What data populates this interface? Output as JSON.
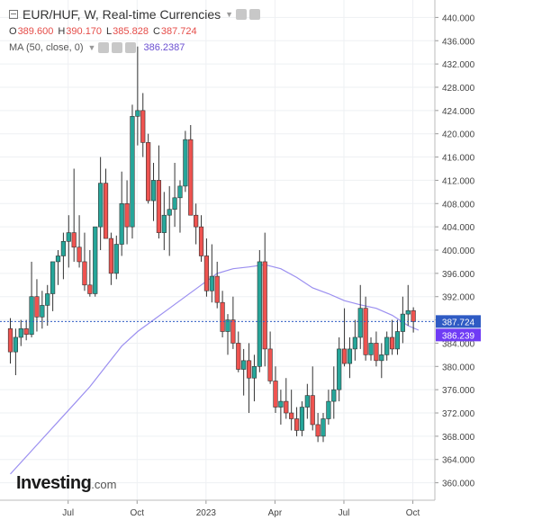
{
  "legend": {
    "title": "EUR/HUF, W, Real-time Currencies",
    "ohlc": [
      {
        "key": "O",
        "value": "389.600"
      },
      {
        "key": "H",
        "value": "390.170"
      },
      {
        "key": "L",
        "value": "385.828"
      },
      {
        "key": "C",
        "value": "387.724"
      }
    ],
    "ma_label": "MA (50, close, 0)",
    "ma_value": "386.2387"
  },
  "brand": {
    "name": "Investing",
    "suffix": ".com"
  },
  "colors": {
    "up": "#26a69a",
    "down": "#ef5350",
    "ma": "#9b8ff0",
    "price_line": "#2f5bc4",
    "price_tag": "#2f5bc4",
    "ma_tag": "#6f3bf5"
  },
  "chart_data": {
    "type": "candlestick",
    "title": "EUR/HUF, W, Real-time Currencies",
    "y_range": [
      357,
      443
    ],
    "y_ticks": [
      "360.000",
      "364.000",
      "368.000",
      "372.000",
      "376.000",
      "380.000",
      "384.000",
      "388.000",
      "392.000",
      "396.000",
      "400.000",
      "404.000",
      "408.000",
      "412.000",
      "416.000",
      "420.000",
      "424.000",
      "428.000",
      "432.000",
      "436.000",
      "440.000"
    ],
    "x_ticks": [
      {
        "label": "Jul",
        "index": 10
      },
      {
        "label": "Oct",
        "index": 23
      },
      {
        "label": "2023",
        "index": 36
      },
      {
        "label": "Apr",
        "index": 49
      },
      {
        "label": "Jul",
        "index": 62
      },
      {
        "label": "Oct",
        "index": 75
      }
    ],
    "last_price_label": "387.724",
    "ma_label": "386.239",
    "candles": [
      [
        386.5,
        388.3,
        380.5,
        382.5
      ],
      [
        382.5,
        386.5,
        378.5,
        385.0
      ],
      [
        385.0,
        388.0,
        383.5,
        386.5
      ],
      [
        386.5,
        388.0,
        384.5,
        385.5
      ],
      [
        385.5,
        398.0,
        385.0,
        392.0
      ],
      [
        392.0,
        395.0,
        386.0,
        388.5
      ],
      [
        388.5,
        393.0,
        386.5,
        390.5
      ],
      [
        390.5,
        394.0,
        387.0,
        392.5
      ],
      [
        392.5,
        397.5,
        389.5,
        398.0
      ],
      [
        398.0,
        400.0,
        394.0,
        399.0
      ],
      [
        399.0,
        403.0,
        395.0,
        401.5
      ],
      [
        401.5,
        406.0,
        397.0,
        403.0
      ],
      [
        403.0,
        414.0,
        398.0,
        400.5
      ],
      [
        400.5,
        406.0,
        397.0,
        398.0
      ],
      [
        398.0,
        403.0,
        393.0,
        394.0
      ],
      [
        394.0,
        400.0,
        392.0,
        392.5
      ],
      [
        392.5,
        404.0,
        392.0,
        404.0
      ],
      [
        404.0,
        416.0,
        400.0,
        411.5
      ],
      [
        411.5,
        414.0,
        402.0,
        402.0
      ],
      [
        402.0,
        403.0,
        394.0,
        396.0
      ],
      [
        396.0,
        402.5,
        395.0,
        401.0
      ],
      [
        401.0,
        413.5,
        399.0,
        408.0
      ],
      [
        408.0,
        412.0,
        401.0,
        404.0
      ],
      [
        404.0,
        425.0,
        402.0,
        423.0
      ],
      [
        423.0,
        435.0,
        418.0,
        424.0
      ],
      [
        424.0,
        427.0,
        416.0,
        418.5
      ],
      [
        418.5,
        420.0,
        408.0,
        408.5
      ],
      [
        408.5,
        415.0,
        405.0,
        412.0
      ],
      [
        412.0,
        418.0,
        402.0,
        403.0
      ],
      [
        403.0,
        410.0,
        400.0,
        406.0
      ],
      [
        406.0,
        411.0,
        399.0,
        407.0
      ],
      [
        407.0,
        415.0,
        404.0,
        409.0
      ],
      [
        409.0,
        412.0,
        403.0,
        411.0
      ],
      [
        411.0,
        420.5,
        410.0,
        419.0
      ],
      [
        419.0,
        421.5,
        406.0,
        406.0
      ],
      [
        406.0,
        408.0,
        401.0,
        404.0
      ],
      [
        404.0,
        406.0,
        398.0,
        399.0
      ],
      [
        399.0,
        402.0,
        392.0,
        393.0
      ],
      [
        393.0,
        401.0,
        391.0,
        395.5
      ],
      [
        395.5,
        398.0,
        390.0,
        391.0
      ],
      [
        391.0,
        393.0,
        385.0,
        386.0
      ],
      [
        386.0,
        389.0,
        382.0,
        388.0
      ],
      [
        388.0,
        392.0,
        383.0,
        384.0
      ],
      [
        384.0,
        386.0,
        379.0,
        379.5
      ],
      [
        379.5,
        383.0,
        375.0,
        381.0
      ],
      [
        381.0,
        384.0,
        372.0,
        378.0
      ],
      [
        378.0,
        382.0,
        374.0,
        380.0
      ],
      [
        380.0,
        400.0,
        379.0,
        398.0
      ],
      [
        398.0,
        403.0,
        380.0,
        383.0
      ],
      [
        383.0,
        386.0,
        377.0,
        377.5
      ],
      [
        377.5,
        380.0,
        372.0,
        373.0
      ],
      [
        373.0,
        376.0,
        370.0,
        374.0
      ],
      [
        374.0,
        378.0,
        371.0,
        372.0
      ],
      [
        372.0,
        376.0,
        369.0,
        371.0
      ],
      [
        371.0,
        373.0,
        368.0,
        369.0
      ],
      [
        369.0,
        374.0,
        368.0,
        373.0
      ],
      [
        373.0,
        377.0,
        371.0,
        375.0
      ],
      [
        375.0,
        380.0,
        369.0,
        370.0
      ],
      [
        370.0,
        372.0,
        367.0,
        368.0
      ],
      [
        368.0,
        372.0,
        367.0,
        371.0
      ],
      [
        371.0,
        376.0,
        370.0,
        374.0
      ],
      [
        374.0,
        380.0,
        371.0,
        376.0
      ],
      [
        376.0,
        385.0,
        374.0,
        383.0
      ],
      [
        383.0,
        390.0,
        380.0,
        380.5
      ],
      [
        380.5,
        385.0,
        378.0,
        383.0
      ],
      [
        383.0,
        388.0,
        381.0,
        385.0
      ],
      [
        385.0,
        394.0,
        383.0,
        390.0
      ],
      [
        390.0,
        392.0,
        381.0,
        382.0
      ],
      [
        382.0,
        385.0,
        381.0,
        384.0
      ],
      [
        384.0,
        386.0,
        380.0,
        381.0
      ],
      [
        381.0,
        384.0,
        378.0,
        382.0
      ],
      [
        382.0,
        386.0,
        381.0,
        385.0
      ],
      [
        385.0,
        388.0,
        382.0,
        383.0
      ],
      [
        383.0,
        388.0,
        382.0,
        386.0
      ],
      [
        386.0,
        392.0,
        384.0,
        389.0
      ],
      [
        389.0,
        394.0,
        387.0,
        389.6
      ],
      [
        389.6,
        390.17,
        385.828,
        387.724
      ]
    ],
    "ma_series": [
      [
        0,
        361.5
      ],
      [
        3,
        364.5
      ],
      [
        6,
        367.5
      ],
      [
        9,
        370.5
      ],
      [
        12,
        373.5
      ],
      [
        15,
        376.5
      ],
      [
        18,
        380.0
      ],
      [
        21,
        383.5
      ],
      [
        24,
        386.0
      ],
      [
        27,
        388.0
      ],
      [
        30,
        390.0
      ],
      [
        33,
        392.0
      ],
      [
        36,
        394.0
      ],
      [
        39,
        396.0
      ],
      [
        42,
        396.8
      ],
      [
        45,
        397.1
      ],
      [
        48,
        397.5
      ],
      [
        51,
        396.8
      ],
      [
        54,
        395.3
      ],
      [
        57,
        393.5
      ],
      [
        60,
        392.5
      ],
      [
        63,
        391.3
      ],
      [
        66,
        390.6
      ],
      [
        69,
        390.0
      ],
      [
        72,
        388.8
      ],
      [
        75,
        387.0
      ],
      [
        77,
        386.239
      ]
    ]
  }
}
